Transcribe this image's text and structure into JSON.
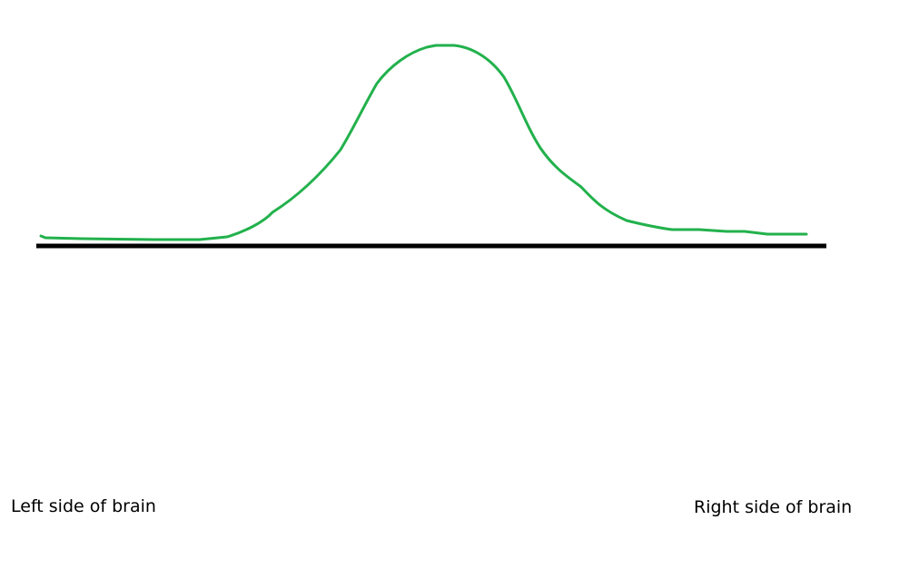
{
  "labels": {
    "left": "Left side of brain",
    "right": "Right side of brain"
  },
  "colors": {
    "curve": "#22b14c",
    "baseline": "#000000"
  },
  "shape": "bell-curve"
}
